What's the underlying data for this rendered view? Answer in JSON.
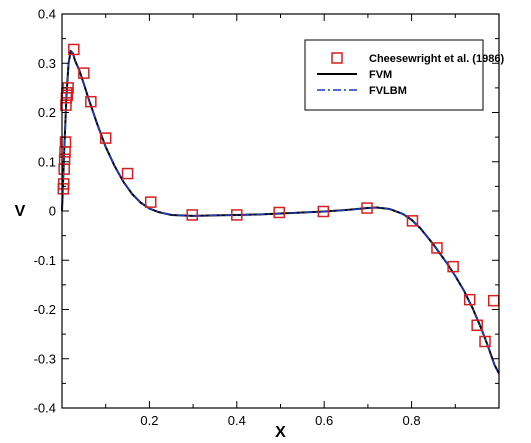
{
  "chart_data": {
    "type": "line",
    "title": "",
    "xlabel": "X",
    "ylabel": "V",
    "xlim": [
      0,
      1
    ],
    "ylim": [
      -0.4,
      0.4
    ],
    "x_ticks": [
      0.2,
      0.4,
      0.6,
      0.8
    ],
    "x_tick_labels": [
      "0.2",
      "0.4",
      "0.6",
      "0.8"
    ],
    "y_ticks": [
      0.4,
      0.3,
      0.2,
      0.1,
      0,
      -0.1,
      -0.2,
      -0.3,
      -0.4
    ],
    "y_tick_labels": [
      "0.4",
      "0.3",
      "0.2",
      "0.1",
      "0",
      "-0.1",
      "-0.2",
      "-0.3",
      "-0.4"
    ],
    "grid": false,
    "legend_position": "top-right",
    "series": [
      {
        "name": "Cheesewright et al. (1986)",
        "kind": "scatter",
        "marker": "open-square",
        "color": "#d42020",
        "x": [
          0.003,
          0.004,
          0.005,
          0.006,
          0.007,
          0.008,
          0.009,
          0.01,
          0.011,
          0.012,
          0.014,
          0.027,
          0.05,
          0.066,
          0.1,
          0.15,
          0.203,
          0.298,
          0.4,
          0.497,
          0.598,
          0.698,
          0.802,
          0.858,
          0.895,
          0.933,
          0.95,
          0.968,
          0.988
        ],
        "y": [
          0.045,
          0.055,
          0.085,
          0.105,
          0.12,
          0.14,
          0.215,
          0.23,
          0.24,
          0.235,
          0.25,
          0.328,
          0.28,
          0.222,
          0.148,
          0.076,
          0.018,
          -0.008,
          -0.008,
          -0.003,
          -0.001,
          0.006,
          -0.02,
          -0.075,
          -0.113,
          -0.18,
          -0.232,
          -0.265,
          -0.182
        ]
      },
      {
        "name": "FVM",
        "kind": "line",
        "style": "solid",
        "color": "#000000",
        "x": [
          0.0,
          0.005,
          0.01,
          0.015,
          0.02,
          0.025,
          0.03,
          0.04,
          0.05,
          0.06,
          0.08,
          0.1,
          0.12,
          0.14,
          0.16,
          0.18,
          0.2,
          0.22,
          0.25,
          0.3,
          0.35,
          0.4,
          0.45,
          0.5,
          0.55,
          0.6,
          0.65,
          0.7,
          0.72,
          0.75,
          0.78,
          0.8,
          0.82,
          0.85,
          0.88,
          0.9,
          0.92,
          0.94,
          0.96,
          0.975,
          0.99,
          1.0
        ],
        "y": [
          0.0,
          0.12,
          0.23,
          0.3,
          0.325,
          0.32,
          0.305,
          0.285,
          0.258,
          0.23,
          0.178,
          0.13,
          0.092,
          0.06,
          0.035,
          0.017,
          0.005,
          -0.002,
          -0.008,
          -0.01,
          -0.009,
          -0.008,
          -0.007,
          -0.005,
          -0.003,
          -0.001,
          0.002,
          0.006,
          0.007,
          0.004,
          -0.006,
          -0.018,
          -0.035,
          -0.068,
          -0.105,
          -0.132,
          -0.162,
          -0.198,
          -0.24,
          -0.275,
          -0.313,
          -0.33
        ]
      },
      {
        "name": "FVLBM",
        "kind": "line",
        "style": "dash-dot",
        "color": "#1a3cd0",
        "x": [
          0.0,
          0.005,
          0.01,
          0.015,
          0.02,
          0.025,
          0.03,
          0.04,
          0.05,
          0.06,
          0.08,
          0.1,
          0.12,
          0.14,
          0.16,
          0.18,
          0.2,
          0.22,
          0.25,
          0.3,
          0.35,
          0.4,
          0.45,
          0.5,
          0.55,
          0.6,
          0.65,
          0.7,
          0.72,
          0.75,
          0.78,
          0.8,
          0.82,
          0.85,
          0.88,
          0.9,
          0.92,
          0.94,
          0.96,
          0.975,
          0.99,
          1.0
        ],
        "y": [
          0.0,
          0.12,
          0.23,
          0.3,
          0.325,
          0.32,
          0.305,
          0.285,
          0.258,
          0.23,
          0.178,
          0.13,
          0.092,
          0.06,
          0.035,
          0.017,
          0.005,
          -0.002,
          -0.008,
          -0.01,
          -0.009,
          -0.008,
          -0.007,
          -0.005,
          -0.003,
          -0.001,
          0.002,
          0.006,
          0.007,
          0.004,
          -0.006,
          -0.018,
          -0.035,
          -0.068,
          -0.105,
          -0.132,
          -0.162,
          -0.198,
          -0.24,
          -0.275,
          -0.313,
          -0.33
        ]
      }
    ]
  }
}
